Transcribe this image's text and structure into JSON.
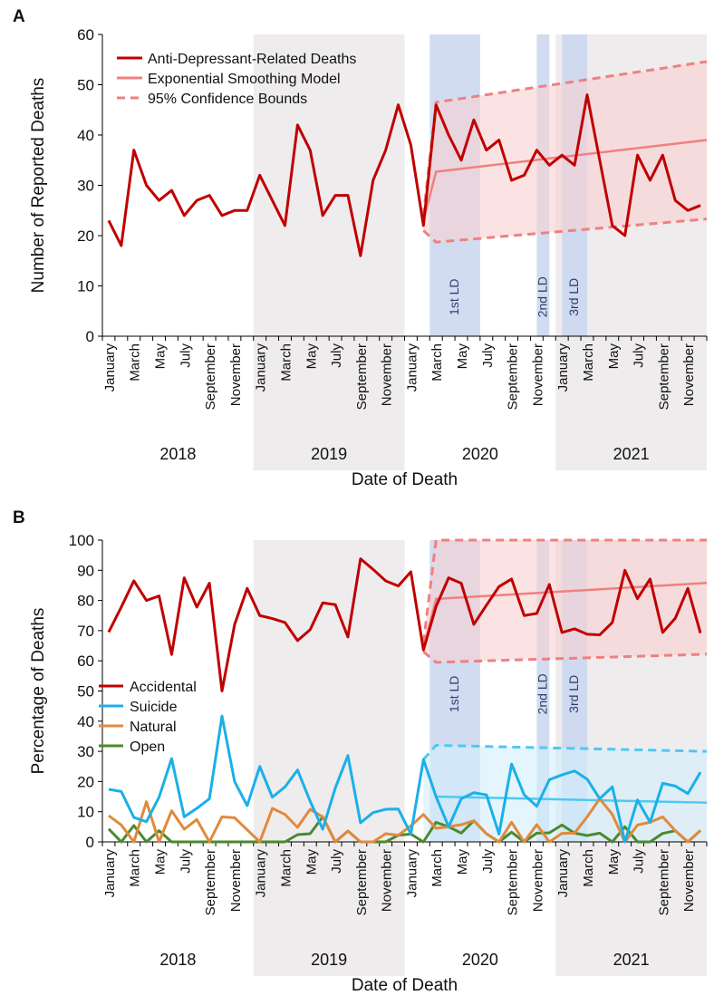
{
  "chart_data": [
    {
      "type": "line",
      "panel_label": "A",
      "ylabel": "Number of Reported Deaths",
      "xlabel": "Date of Death",
      "ylim": [
        0,
        60
      ],
      "yticks": [
        0,
        10,
        20,
        30,
        40,
        50,
        60
      ],
      "years": [
        "2018",
        "2019",
        "2020",
        "2021"
      ],
      "month_labels": [
        "January",
        "March",
        "May",
        "July",
        "September",
        "November"
      ],
      "legend": {
        "location": "top-left",
        "entries": [
          "Anti-Depressant-Related Deaths",
          "Exponential Smoothing Model",
          "95% Confidence Bounds"
        ]
      },
      "lockdowns": [
        {
          "label": "1st LD",
          "sup": "st",
          "start_month": 26,
          "end_month": 30
        },
        {
          "label": "2nd LD",
          "sup": "nd",
          "start_month": 34.5,
          "end_month": 35.5
        },
        {
          "label": "3rd LD",
          "sup": "rd",
          "start_month": 36.5,
          "end_month": 38.5
        }
      ],
      "series": [
        {
          "name": "Anti-Depressant-Related Deaths",
          "color": "#c00000",
          "values": [
            23,
            18,
            37,
            30,
            27,
            29,
            24,
            27,
            28,
            24,
            25,
            25,
            32,
            27,
            22,
            42,
            37,
            24,
            28,
            28,
            16,
            31,
            37,
            46,
            38,
            22,
            46,
            40,
            35,
            43,
            37,
            39,
            31,
            32,
            37,
            34,
            36,
            34,
            48,
            35,
            22,
            20,
            36,
            31,
            36,
            27,
            25,
            26
          ]
        }
      ],
      "model": {
        "name": "Exponential Smoothing Model",
        "color": "#f08080",
        "start_index": 25,
        "start": 23,
        "from": 32.7,
        "to": 39.0
      },
      "bounds": {
        "name": "95% Confidence Bounds",
        "color": "#f08080",
        "fill": "#f9d0d0",
        "start_index": 25,
        "upper_start": 24,
        "lower_start": 21,
        "upper_from": 46.5,
        "upper_to": 54.6,
        "lower_from": 18.7,
        "lower_to": 23.3
      }
    },
    {
      "type": "line",
      "panel_label": "B",
      "ylabel": "Percentage of Deaths",
      "xlabel": "Date of Death",
      "ylim": [
        0,
        100
      ],
      "yticks": [
        0,
        10,
        20,
        30,
        40,
        50,
        60,
        70,
        80,
        90,
        100
      ],
      "years": [
        "2018",
        "2019",
        "2020",
        "2021"
      ],
      "month_labels": [
        "January",
        "March",
        "May",
        "July",
        "September",
        "November"
      ],
      "legend": {
        "location": "middle-left",
        "entries": [
          "Accidental",
          "Suicide",
          "Natural",
          "Open"
        ]
      },
      "lockdowns": [
        {
          "label": "1st LD",
          "sup": "st",
          "start_month": 26,
          "end_month": 30
        },
        {
          "label": "2nd LD",
          "sup": "nd",
          "start_month": 34.5,
          "end_month": 35.5
        },
        {
          "label": "3rd LD",
          "sup": "rd",
          "start_month": 36.5,
          "end_month": 38.5
        }
      ],
      "series": [
        {
          "name": "Accidental",
          "color": "#c00000",
          "values": [
            69.5,
            77.8,
            86.5,
            80,
            81.5,
            62.1,
            87.5,
            77.8,
            85.7,
            50,
            72,
            84,
            75,
            74,
            72.7,
            66.7,
            70.3,
            79.2,
            78.6,
            67.9,
            93.8,
            90.3,
            86.5,
            84.8,
            89.5,
            63.6,
            78,
            87.5,
            85.7,
            72.1,
            78.4,
            84.6,
            87.1,
            75,
            75.7,
            85.3,
            69.4,
            70.6,
            68.8,
            68.6,
            72.7,
            90,
            80.6,
            87.1,
            69.4,
            74.1,
            84,
            69.2
          ]
        },
        {
          "name": "Suicide",
          "color": "#1ab0e8",
          "values": [
            17.4,
            16.7,
            8.1,
            6.7,
            14.8,
            27.6,
            8.3,
            11.1,
            14.3,
            41.7,
            20,
            12,
            25,
            14.8,
            18.2,
            23.8,
            13.5,
            4.2,
            17.9,
            28.6,
            6.3,
            9.7,
            10.8,
            10.9,
            2.6,
            27.3,
            15,
            5,
            14.3,
            16.3,
            15.6,
            2.6,
            25.8,
            15.6,
            11.8,
            20.6,
            22.2,
            23.5,
            20.8,
            14.3,
            18.2,
            0,
            13.9,
            6.5,
            19.4,
            18.5,
            16,
            23.1
          ]
        },
        {
          "name": "Natural",
          "color": "#e08a3c",
          "values": [
            8.7,
            5.6,
            0,
            13.3,
            0,
            10.3,
            4.2,
            7.4,
            0,
            8.3,
            8,
            4,
            0,
            11.1,
            9.1,
            4.8,
            10.8,
            8.3,
            0,
            3.6,
            0,
            0,
            2.7,
            2.2,
            5.3,
            9.1,
            4.5,
            5,
            5.7,
            7,
            2.7,
            0,
            6.5,
            0,
            5.7,
            0,
            2.8,
            2.9,
            8.3,
            14.3,
            9.1,
            0,
            5.6,
            6.5,
            8.3,
            3.7,
            0,
            3.8
          ]
        },
        {
          "name": "Open",
          "color": "#4a8a2e",
          "values": [
            4.3,
            0,
            5.4,
            0,
            3.7,
            0,
            0,
            0,
            0,
            0,
            0,
            0,
            0,
            0,
            0,
            2.4,
            2.7,
            8.3,
            0,
            3.6,
            0,
            0,
            0,
            2.2,
            2.6,
            0,
            6.5,
            5,
            2.9,
            7,
            2.7,
            0,
            3.2,
            0,
            2.9,
            3,
            5.6,
            2.9,
            2.1,
            2.9,
            0,
            5,
            0,
            0,
            2.8,
            3.7,
            0,
            3.8
          ]
        }
      ],
      "models": [
        {
          "name": "Accidental model",
          "color": "#f08080",
          "fill": "#f9d0d0",
          "start_index": 25,
          "start": 64,
          "from": 80.5,
          "to": 85.8,
          "upper_start": 66,
          "upper_from": 100,
          "upper_to": 100,
          "lower_start": 63,
          "lower_from": 59.5,
          "lower_to": 62.2
        },
        {
          "name": "Suicide model",
          "color": "#4ec9f0",
          "fill": "#d2eefb",
          "start_index": 25,
          "start": 27.3,
          "from": 15,
          "to": 13,
          "upper_start": 27.3,
          "upper_from": 32,
          "upper_to": 30,
          "lower_start": 0,
          "lower_from": 0,
          "lower_to": 0
        }
      ]
    }
  ]
}
